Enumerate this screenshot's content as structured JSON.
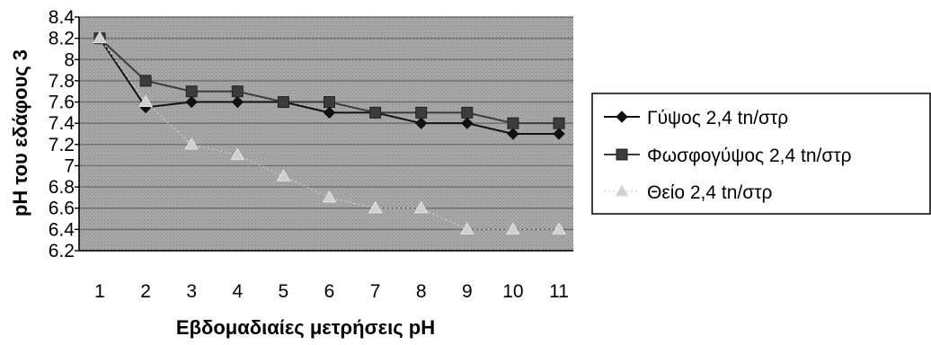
{
  "chart_data": {
    "type": "line",
    "xlabel": "Εβδομαδιαίες μετρήσεις pH",
    "ylabel": "pH του εδάφους 3",
    "categories": [
      "1",
      "2",
      "3",
      "4",
      "5",
      "6",
      "7",
      "8",
      "9",
      "10",
      "11"
    ],
    "ylim": [
      6.2,
      8.4
    ],
    "yticks": [
      "6.2",
      "6.4",
      "6.6",
      "6.8",
      "7",
      "7.2",
      "7.4",
      "7.6",
      "7.8",
      "8",
      "8.2",
      "8.4"
    ],
    "grid": true,
    "legend_position": "right",
    "series": [
      {
        "name": "Γύψος 2,4 tn/στρ",
        "marker": "diamond",
        "color": "#111111",
        "values": [
          8.2,
          7.55,
          7.6,
          7.6,
          7.6,
          7.5,
          7.5,
          7.4,
          7.4,
          7.3,
          7.3
        ]
      },
      {
        "name": "Φωσφογύψος 2,4 tn/στρ",
        "marker": "square",
        "color": "#3c3c3c",
        "values": [
          8.2,
          7.8,
          7.7,
          7.7,
          7.6,
          7.6,
          7.5,
          7.5,
          7.5,
          7.4,
          7.4
        ]
      },
      {
        "name": "Θείο 2,4 tn/στρ",
        "marker": "triangle",
        "color": "#cfcfcf",
        "values": [
          8.2,
          7.6,
          7.2,
          7.1,
          6.9,
          6.7,
          6.6,
          6.6,
          6.4,
          6.4,
          6.4
        ]
      }
    ],
    "colors": {
      "plot_background": "#a9a9a9",
      "gridline": "#6e6e6e",
      "axis": "#000000"
    }
  }
}
